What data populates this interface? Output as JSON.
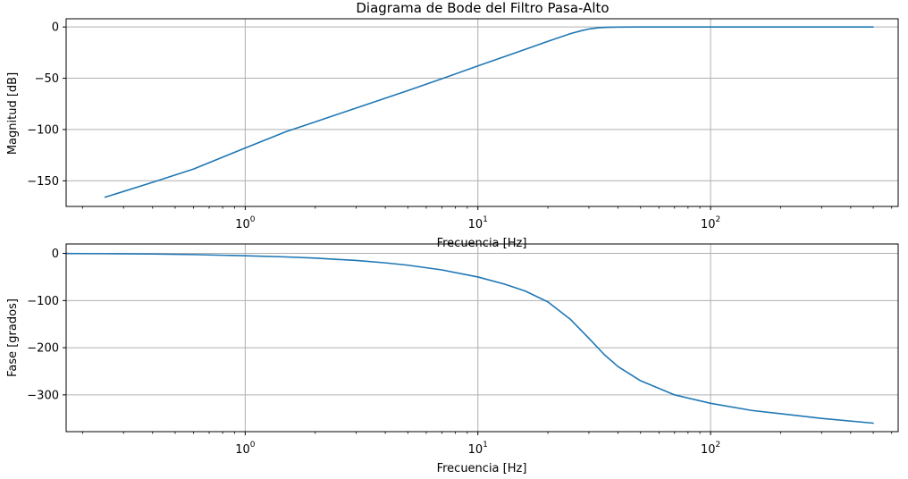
{
  "title": "Diagrama de Bode del Filtro Pasa-Alto",
  "colors": {
    "line": "#1f77b4",
    "grid": "#b0b0b0",
    "axes": "#000000",
    "background": "#ffffff"
  },
  "chart_data": [
    {
      "type": "line",
      "title": "Diagrama de Bode del Filtro Pasa-Alto",
      "xlabel": "Frecuencia [Hz]",
      "ylabel": "Magnitud [dB]",
      "xscale": "log",
      "xlim": [
        0.17,
        640
      ],
      "ylim": [
        -175,
        8
      ],
      "grid": true,
      "xticks": [
        {
          "value": 1,
          "base": "10",
          "exp": "0"
        },
        {
          "value": 10,
          "base": "10",
          "exp": "1"
        },
        {
          "value": 100,
          "base": "10",
          "exp": "2"
        }
      ],
      "yticks": [
        {
          "value": 0,
          "label": "0"
        },
        {
          "value": -50,
          "label": "−50"
        },
        {
          "value": -100,
          "label": "−100"
        },
        {
          "value": -150,
          "label": "−150"
        }
      ],
      "series": [
        {
          "x": [
            0.25,
            0.4,
            0.6,
            1,
            1.5,
            2,
            3,
            5,
            7,
            10,
            15,
            20,
            25,
            28,
            30,
            33,
            36,
            40,
            50,
            70,
            100,
            200,
            500
          ],
          "y": [
            -166,
            -151.5,
            -138.5,
            -118,
            -102,
            -92.5,
            -79,
            -62,
            -50.5,
            -38,
            -24,
            -14,
            -6.5,
            -3.5,
            -2,
            -0.8,
            -0.3,
            -0.1,
            0,
            0,
            0,
            0,
            0
          ]
        }
      ]
    },
    {
      "type": "line",
      "title": "",
      "xlabel": "Frecuencia [Hz]",
      "ylabel": "Fase [grados]",
      "xscale": "log",
      "xlim": [
        0.17,
        640
      ],
      "ylim": [
        -378,
        20
      ],
      "grid": true,
      "xticks": [
        {
          "value": 1,
          "base": "10",
          "exp": "0"
        },
        {
          "value": 10,
          "base": "10",
          "exp": "1"
        },
        {
          "value": 100,
          "base": "10",
          "exp": "2"
        }
      ],
      "yticks": [
        {
          "value": 0,
          "label": "0"
        },
        {
          "value": -100,
          "label": "−100"
        },
        {
          "value": -200,
          "label": "−200"
        },
        {
          "value": -300,
          "label": "−300"
        }
      ],
      "series": [
        {
          "x": [
            0.17,
            0.25,
            0.4,
            0.6,
            1,
            1.5,
            2,
            3,
            4,
            5,
            7,
            10,
            13,
            16,
            20,
            25,
            30,
            35,
            40,
            50,
            70,
            100,
            150,
            200,
            300,
            500
          ],
          "y": [
            -0.3,
            -0.6,
            -1.3,
            -2.5,
            -5,
            -7.5,
            -10,
            -15,
            -20,
            -25,
            -35,
            -50,
            -65,
            -80,
            -103,
            -140,
            -180,
            -215,
            -240,
            -270,
            -300,
            -318,
            -333,
            -340,
            -350,
            -360
          ]
        }
      ]
    }
  ]
}
